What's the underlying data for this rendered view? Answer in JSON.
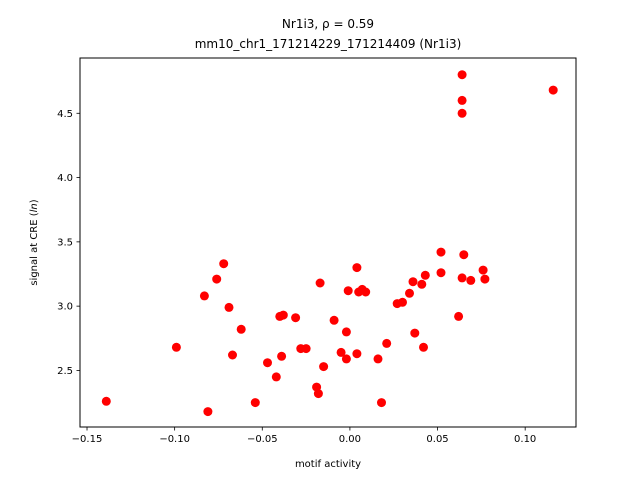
{
  "chart_data": {
    "type": "scatter",
    "title_line1": "Nr1i3, ρ = 0.59",
    "title_line2": "mm10_chr1_171214229_171214409 (Nr1i3)",
    "xlabel": "motif activity",
    "ylabel": "signal at CRE (ln)",
    "ylabel_prefix": "signal at CRE (",
    "ylabel_italic": "ln",
    "ylabel_suffix": ")",
    "xlim": [
      -0.154,
      0.129
    ],
    "ylim": [
      2.06,
      4.93
    ],
    "xticks": [
      -0.15,
      -0.1,
      -0.05,
      0.0,
      0.05,
      0.1
    ],
    "xtick_labels": [
      "−0.15",
      "−0.10",
      "−0.05",
      "0.00",
      "0.05",
      "0.10"
    ],
    "yticks": [
      2.5,
      3.0,
      3.5,
      4.0,
      4.5
    ],
    "ytick_labels": [
      "2.5",
      "3.0",
      "3.5",
      "4.0",
      "4.5"
    ],
    "grid": false,
    "marker_color": "#ff0000",
    "points": [
      {
        "x": -0.139,
        "y": 2.26
      },
      {
        "x": -0.099,
        "y": 2.68
      },
      {
        "x": -0.083,
        "y": 3.08
      },
      {
        "x": -0.081,
        "y": 2.18
      },
      {
        "x": -0.076,
        "y": 3.21
      },
      {
        "x": -0.072,
        "y": 3.33
      },
      {
        "x": -0.069,
        "y": 2.99
      },
      {
        "x": -0.067,
        "y": 2.62
      },
      {
        "x": -0.062,
        "y": 2.82
      },
      {
        "x": -0.054,
        "y": 2.25
      },
      {
        "x": -0.047,
        "y": 2.56
      },
      {
        "x": -0.042,
        "y": 2.45
      },
      {
        "x": -0.04,
        "y": 2.92
      },
      {
        "x": -0.038,
        "y": 2.93
      },
      {
        "x": -0.039,
        "y": 2.61
      },
      {
        "x": -0.031,
        "y": 2.91
      },
      {
        "x": -0.028,
        "y": 2.67
      },
      {
        "x": -0.025,
        "y": 2.67
      },
      {
        "x": -0.019,
        "y": 2.37
      },
      {
        "x": -0.018,
        "y": 2.32
      },
      {
        "x": -0.017,
        "y": 3.18
      },
      {
        "x": -0.015,
        "y": 2.53
      },
      {
        "x": -0.009,
        "y": 2.89
      },
      {
        "x": -0.005,
        "y": 2.64
      },
      {
        "x": -0.002,
        "y": 2.8
      },
      {
        "x": -0.002,
        "y": 2.59
      },
      {
        "x": -0.001,
        "y": 3.12
      },
      {
        "x": 0.004,
        "y": 2.63
      },
      {
        "x": 0.004,
        "y": 3.3
      },
      {
        "x": 0.005,
        "y": 3.11
      },
      {
        "x": 0.007,
        "y": 3.13
      },
      {
        "x": 0.009,
        "y": 3.11
      },
      {
        "x": 0.016,
        "y": 2.59
      },
      {
        "x": 0.018,
        "y": 2.25
      },
      {
        "x": 0.021,
        "y": 2.71
      },
      {
        "x": 0.027,
        "y": 3.02
      },
      {
        "x": 0.03,
        "y": 3.03
      },
      {
        "x": 0.034,
        "y": 3.1
      },
      {
        "x": 0.036,
        "y": 3.19
      },
      {
        "x": 0.037,
        "y": 2.79
      },
      {
        "x": 0.041,
        "y": 3.17
      },
      {
        "x": 0.042,
        "y": 2.68
      },
      {
        "x": 0.043,
        "y": 3.24
      },
      {
        "x": 0.052,
        "y": 3.42
      },
      {
        "x": 0.052,
        "y": 3.26
      },
      {
        "x": 0.062,
        "y": 2.92
      },
      {
        "x": 0.064,
        "y": 3.22
      },
      {
        "x": 0.064,
        "y": 4.5
      },
      {
        "x": 0.064,
        "y": 4.6
      },
      {
        "x": 0.064,
        "y": 4.8
      },
      {
        "x": 0.065,
        "y": 3.4
      },
      {
        "x": 0.069,
        "y": 3.2
      },
      {
        "x": 0.076,
        "y": 3.28
      },
      {
        "x": 0.077,
        "y": 3.21
      },
      {
        "x": 0.116,
        "y": 4.68
      }
    ]
  }
}
